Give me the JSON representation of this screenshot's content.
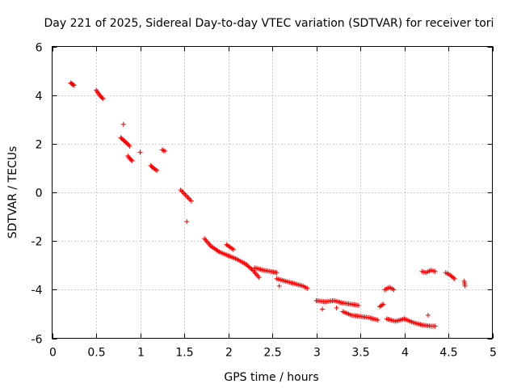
{
  "chart_data": {
    "type": "scatter",
    "title": "Day 221 of 2025, Sidereal Day-to-day VTEC variation (SDTVAR) for receiver tori",
    "xlabel": "GPS time / hours",
    "ylabel": "SDTVAR / TECUs",
    "xlim": [
      0,
      5
    ],
    "ylim": [
      -6,
      6
    ],
    "xticks": [
      0,
      0.5,
      1,
      1.5,
      2,
      2.5,
      3,
      3.5,
      4,
      4.5,
      5
    ],
    "yticks": [
      -6,
      -4,
      -2,
      0,
      2,
      4,
      6
    ],
    "xtick_labels": [
      "0",
      "0.5",
      "1",
      "1.5",
      "2",
      "2.5",
      "3",
      "3.5",
      "4",
      "4.5",
      "5"
    ],
    "ytick_labels": [
      "-6",
      "-4",
      "-2",
      "0",
      "2",
      "4",
      "6"
    ],
    "grid": true,
    "marker": "+",
    "color": "#ff0000",
    "segments": [
      [
        [
          0.21,
          4.5
        ],
        [
          0.23,
          4.45
        ],
        [
          0.25,
          4.4
        ]
      ],
      [
        [
          0.5,
          4.2
        ],
        [
          0.53,
          4.05
        ],
        [
          0.55,
          3.95
        ],
        [
          0.58,
          3.85
        ]
      ],
      [
        [
          0.81,
          2.8
        ]
      ],
      [
        [
          0.78,
          2.25
        ],
        [
          0.81,
          2.15
        ],
        [
          0.84,
          2.05
        ],
        [
          0.87,
          1.95
        ],
        [
          0.88,
          1.9
        ]
      ],
      [
        [
          0.86,
          1.5
        ],
        [
          0.88,
          1.4
        ],
        [
          0.91,
          1.3
        ]
      ],
      [
        [
          1.0,
          1.65
        ]
      ],
      [
        [
          1.12,
          1.1
        ],
        [
          1.15,
          1.0
        ],
        [
          1.19,
          0.9
        ]
      ],
      [
        [
          1.25,
          1.75
        ],
        [
          1.28,
          1.7
        ]
      ],
      [
        [
          1.46,
          0.1
        ],
        [
          1.5,
          -0.05
        ],
        [
          1.54,
          -0.2
        ],
        [
          1.58,
          -0.35
        ]
      ],
      [
        [
          1.53,
          -1.2
        ]
      ],
      [
        [
          1.73,
          -1.9
        ],
        [
          1.8,
          -2.2
        ],
        [
          1.9,
          -2.45
        ],
        [
          2.0,
          -2.6
        ],
        [
          2.1,
          -2.75
        ],
        [
          2.2,
          -2.95
        ],
        [
          2.28,
          -3.2
        ],
        [
          2.35,
          -3.5
        ]
      ],
      [
        [
          1.98,
          -2.15
        ],
        [
          2.02,
          -2.25
        ],
        [
          2.06,
          -2.35
        ]
      ],
      [
        [
          2.3,
          -3.1
        ],
        [
          2.4,
          -3.2
        ],
        [
          2.48,
          -3.25
        ],
        [
          2.55,
          -3.3
        ]
      ],
      [
        [
          2.58,
          -3.85
        ]
      ],
      [
        [
          2.55,
          -3.55
        ],
        [
          2.65,
          -3.65
        ],
        [
          2.75,
          -3.75
        ],
        [
          2.85,
          -3.85
        ],
        [
          2.9,
          -3.95
        ]
      ],
      [
        [
          3.0,
          -4.45
        ],
        [
          3.1,
          -4.5
        ],
        [
          3.2,
          -4.45
        ],
        [
          3.3,
          -4.55
        ],
        [
          3.4,
          -4.6
        ],
        [
          3.48,
          -4.65
        ]
      ],
      [
        [
          3.07,
          -4.8
        ]
      ],
      [
        [
          3.23,
          -4.75
        ]
      ],
      [
        [
          3.3,
          -4.9
        ],
        [
          3.4,
          -5.05
        ],
        [
          3.5,
          -5.1
        ],
        [
          3.6,
          -5.15
        ],
        [
          3.7,
          -5.25
        ]
      ],
      [
        [
          3.72,
          -4.7
        ],
        [
          3.76,
          -4.6
        ]
      ],
      [
        [
          3.78,
          -4.0
        ],
        [
          3.83,
          -3.9
        ],
        [
          3.88,
          -4.0
        ]
      ],
      [
        [
          3.8,
          -5.2
        ],
        [
          3.9,
          -5.3
        ],
        [
          4.0,
          -5.2
        ],
        [
          4.1,
          -5.35
        ],
        [
          4.2,
          -5.45
        ],
        [
          4.3,
          -5.5
        ],
        [
          4.35,
          -5.5
        ]
      ],
      [
        [
          4.27,
          -5.05
        ]
      ],
      [
        [
          4.2,
          -3.25
        ],
        [
          4.25,
          -3.3
        ],
        [
          4.3,
          -3.2
        ],
        [
          4.35,
          -3.25
        ]
      ],
      [
        [
          4.47,
          -3.3
        ],
        [
          4.52,
          -3.4
        ],
        [
          4.57,
          -3.55
        ]
      ],
      [
        [
          4.68,
          -3.65
        ],
        [
          4.69,
          -3.85
        ]
      ]
    ]
  }
}
